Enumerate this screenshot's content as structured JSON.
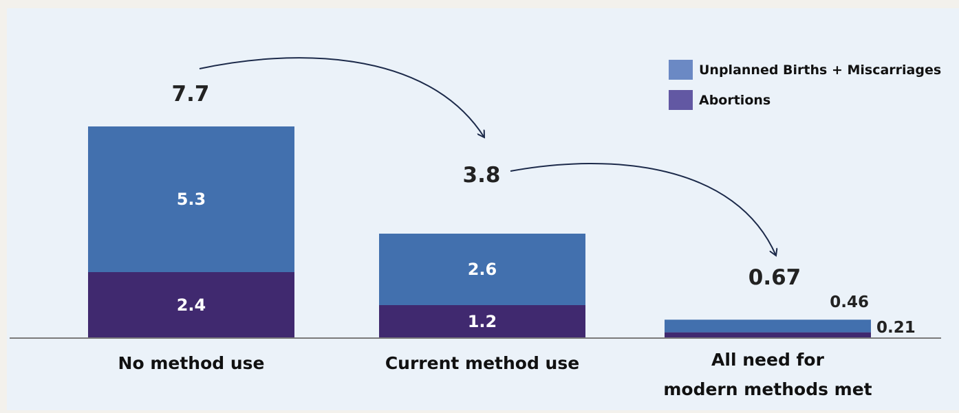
{
  "chart_data": {
    "type": "bar",
    "stacked": true,
    "categories": [
      "No method use",
      "Current method use",
      "All need for\nmodern methods met"
    ],
    "series": [
      {
        "name": "Abortions",
        "values": [
          2.4,
          1.2,
          0.21
        ]
      },
      {
        "name": "Unplanned Births + Miscarriages",
        "values": [
          5.3,
          2.6,
          0.46
        ]
      }
    ],
    "totals": [
      "7.7",
      "3.8",
      "0.67"
    ],
    "segment_labels": [
      [
        "2.4",
        "1.2",
        "0.21"
      ],
      [
        "5.3",
        "2.6",
        "0.46"
      ]
    ],
    "legend": [
      "Unplanned Births + Miscarriages",
      "Abortions"
    ],
    "legend_position": "top-right",
    "colors": {
      "Abortions": "#40296f",
      "Unplanned Births + Miscarriages": "#4270ae"
    },
    "legend_colors": {
      "Abortions": "#6258a3",
      "Unplanned Births + Miscarriages": "#6b89c4"
    },
    "background": "#ebf2f9",
    "baseline_color": "#7a7a7a",
    "arrow_color": "#1c2a4a",
    "title": "",
    "xlabel": "",
    "ylabel": "",
    "grid": false
  }
}
